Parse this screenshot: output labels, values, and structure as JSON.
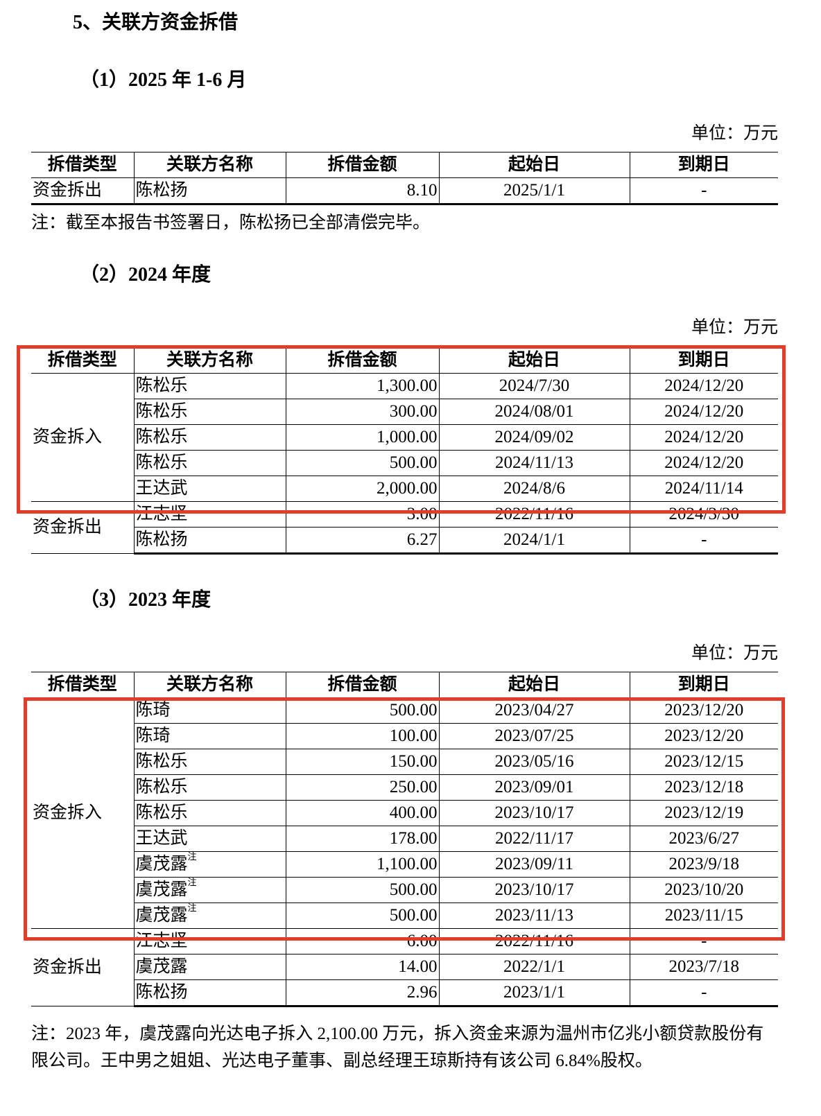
{
  "section_title": "5、关联方资金拆借",
  "highlight_color": "#e23c2a",
  "columns": [
    "拆借类型",
    "关联方名称",
    "拆借金额",
    "起始日",
    "到期日"
  ],
  "tables": [
    {
      "heading": "（1）2025 年 1-6 月",
      "unit": "单位：万元",
      "groups": [
        {
          "type": "资金拆出",
          "rows": [
            {
              "name": "陈松扬",
              "amount": "8.10",
              "start": "2025/1/1",
              "end": "-"
            }
          ]
        }
      ],
      "note": "注：截至本报告书签署日，陈松扬已全部清偿完毕。"
    },
    {
      "heading": "（2）2024 年度",
      "unit": "单位：万元",
      "groups": [
        {
          "type": "资金拆入",
          "rows": [
            {
              "name": "陈松乐",
              "amount": "1,300.00",
              "start": "2024/7/30",
              "end": "2024/12/20"
            },
            {
              "name": "陈松乐",
              "amount": "300.00",
              "start": "2024/08/01",
              "end": "2024/12/20"
            },
            {
              "name": "陈松乐",
              "amount": "1,000.00",
              "start": "2024/09/02",
              "end": "2024/12/20"
            },
            {
              "name": "陈松乐",
              "amount": "500.00",
              "start": "2024/11/13",
              "end": "2024/12/20"
            },
            {
              "name": "王达武",
              "amount": "2,000.00",
              "start": "2024/8/6",
              "end": "2024/11/14"
            }
          ]
        },
        {
          "type": "资金拆出",
          "rows": [
            {
              "name": "江志坚",
              "amount": "3.00",
              "start": "2022/11/16",
              "end": "2024/3/30"
            },
            {
              "name": "陈松扬",
              "amount": "6.27",
              "start": "2024/1/1",
              "end": "-"
            }
          ]
        }
      ]
    },
    {
      "heading": "（3）2023 年度",
      "unit": "单位：万元",
      "groups": [
        {
          "type": "资金拆入",
          "rows": [
            {
              "name": "陈琦",
              "amount": "500.00",
              "start": "2023/04/27",
              "end": "2023/12/20"
            },
            {
              "name": "陈琦",
              "amount": "100.00",
              "start": "2023/07/25",
              "end": "2023/12/20"
            },
            {
              "name": "陈松乐",
              "amount": "150.00",
              "start": "2023/05/16",
              "end": "2023/12/15"
            },
            {
              "name": "陈松乐",
              "amount": "250.00",
              "start": "2023/09/01",
              "end": "2023/12/18"
            },
            {
              "name": "陈松乐",
              "amount": "400.00",
              "start": "2023/10/17",
              "end": "2023/12/19"
            },
            {
              "name": "王达武",
              "amount": "178.00",
              "start": "2022/11/17",
              "end": "2023/6/27"
            },
            {
              "name": "虞茂露",
              "sup": "注",
              "amount": "1,100.00",
              "start": "2023/09/11",
              "end": "2023/9/18"
            },
            {
              "name": "虞茂露",
              "sup": "注",
              "amount": "500.00",
              "start": "2023/10/17",
              "end": "2023/10/20"
            },
            {
              "name": "虞茂露",
              "sup": "注",
              "amount": "500.00",
              "start": "2023/11/13",
              "end": "2023/11/15"
            }
          ]
        },
        {
          "type": "资金拆出",
          "rows": [
            {
              "name": "江志坚",
              "amount": "6.00",
              "start": "2022/11/16",
              "end": "-"
            },
            {
              "name": "虞茂露",
              "amount": "14.00",
              "start": "2022/1/1",
              "end": "2023/7/18"
            },
            {
              "name": "陈松扬",
              "amount": "2.96",
              "start": "2023/1/1",
              "end": "-"
            }
          ]
        }
      ],
      "note": "注：2023 年，虞茂露向光达电子拆入 2,100.00 万元，拆入资金来源为温州市亿兆小额贷款股份有限公司。王中男之姐姐、光达电子董事、副总经理王琼斯持有该公司 6.84%股权。"
    }
  ]
}
